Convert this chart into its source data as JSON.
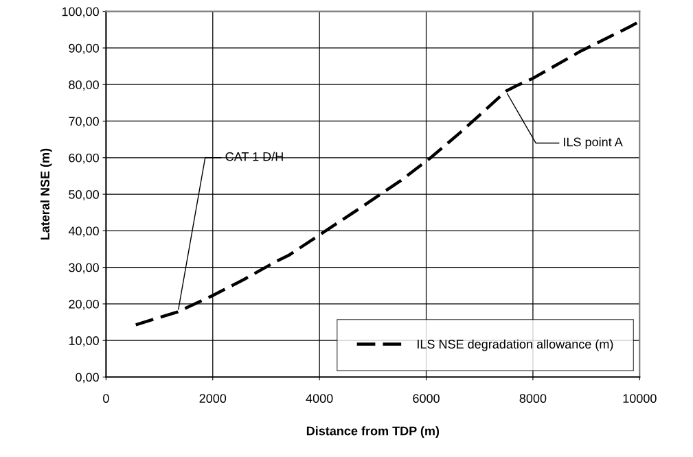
{
  "chart_data": {
    "type": "line",
    "xlabel": "Distance from TDP (m)",
    "ylabel": "Lateral NSE (m)",
    "series": [
      {
        "name": "ILS NSE degradation allowance (m)",
        "color": "#000000",
        "x": [
          558,
          1340,
          1985,
          2586,
          3187,
          3424,
          4760,
          5519,
          6078,
          6679,
          7496,
          7697,
          8000,
          8903,
          9815,
          10000
        ],
        "values": [
          14.3,
          17.8,
          22.2,
          26.7,
          31.6,
          33.3,
          46.2,
          53.7,
          59.9,
          67.4,
          78.2,
          79.7,
          81.7,
          89.2,
          95.8,
          97.3
        ]
      }
    ],
    "xlim": [
      0,
      10000
    ],
    "xticks": [
      0,
      2000,
      4000,
      6000,
      8000,
      10000
    ],
    "ylim": [
      0,
      100
    ],
    "yticks": [
      {
        "value": 0,
        "label": "0,00"
      },
      {
        "value": 10,
        "label": "10,00"
      },
      {
        "value": 20,
        "label": "20,00"
      },
      {
        "value": 30,
        "label": "30,00"
      },
      {
        "value": 40,
        "label": "40,00"
      },
      {
        "value": 50,
        "label": "50,00"
      },
      {
        "value": 60,
        "label": "60,00"
      },
      {
        "value": 70,
        "label": "70,00"
      },
      {
        "value": 80,
        "label": "80,00"
      },
      {
        "value": 90,
        "label": "90,00"
      },
      {
        "value": 100,
        "label": "100,00"
      }
    ],
    "annotations": [
      {
        "text": "CAT 1 D/H",
        "x": 1350,
        "y": 18
      },
      {
        "text": "ILS point A",
        "x": 7500,
        "y": 78
      }
    ],
    "grid": true,
    "legend": "lower right",
    "line_style": "dashed",
    "marker": "none"
  }
}
